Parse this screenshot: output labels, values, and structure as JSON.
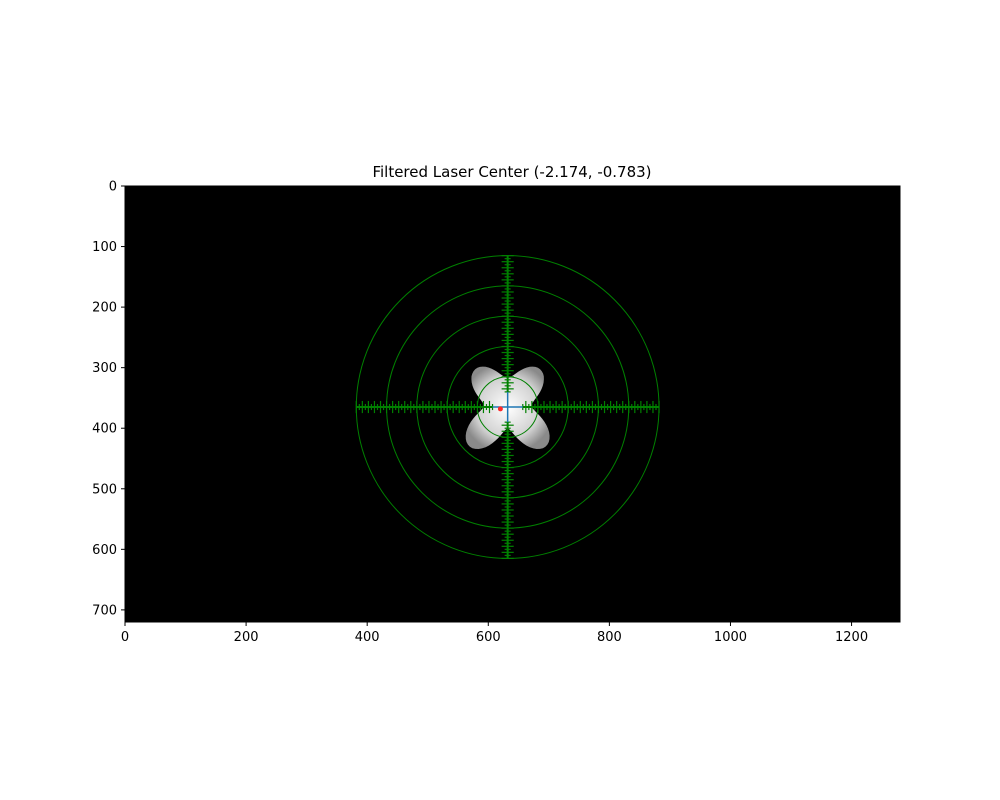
{
  "chart_data": {
    "type": "heatmap",
    "title": "Filtered Laser Center (-2.174, -0.783)",
    "xlabel": "",
    "ylabel": "",
    "image_size": [
      1280,
      720
    ],
    "xlim": [
      0,
      1280
    ],
    "ylim": [
      720,
      0
    ],
    "x_ticks": [
      0,
      200,
      400,
      600,
      800,
      1000,
      1200
    ],
    "y_ticks": [
      0,
      100,
      200,
      300,
      400,
      500,
      600,
      700
    ],
    "background_color": "#000000",
    "reticle_color": "#008000",
    "reticle": {
      "center": [
        632,
        365
      ],
      "ring_radii": [
        50,
        100,
        150,
        200,
        250
      ],
      "arm_half_length": 250,
      "inner_gap": 25,
      "ticks": [
        {
          "every": 5,
          "half_length": 5
        },
        {
          "every": 10,
          "half_length": 10
        }
      ]
    },
    "crosshair": {
      "center": [
        632,
        365
      ],
      "half_length": 25,
      "color": "#1f77b4"
    },
    "laser_center_marker": {
      "x": 620,
      "y": 368,
      "color": "#ff2a2a"
    },
    "blob": {
      "shape": "four-lobed",
      "color": "#d9d9d9"
    },
    "grid": false,
    "legend": "none"
  }
}
